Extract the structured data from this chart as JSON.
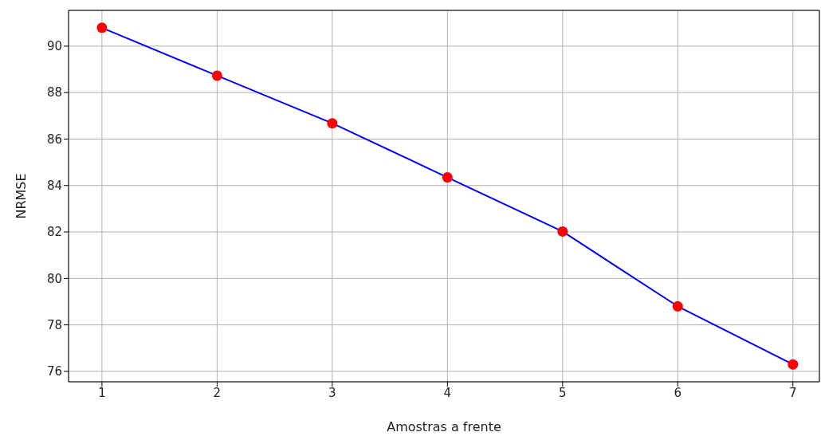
{
  "chart_data": {
    "type": "line",
    "xlabel": "Amostras a frente",
    "ylabel": "NRMSE",
    "x": [
      1,
      2,
      3,
      4,
      5,
      6,
      7
    ],
    "series": [
      {
        "color": "#0000ff",
        "colors": [
          "#ff0000",
          "#ff0000",
          "#ff0000",
          "#ff0000",
          "#ff0000",
          "#ff0000",
          "#ff0000"
        ],
        "values": [
          90.79,
          88.73,
          86.68,
          84.35,
          82.02,
          78.8,
          76.3
        ]
      }
    ],
    "xlim": [
      0.71,
      7.23
    ],
    "xticks": [
      1,
      2,
      3,
      4,
      5,
      6,
      7
    ],
    "ylim": [
      75.55,
      91.54
    ],
    "yticks": [
      76,
      78,
      80,
      82,
      84,
      86,
      88,
      90
    ],
    "grid": true,
    "marker": "circle",
    "line_style": "solid"
  }
}
